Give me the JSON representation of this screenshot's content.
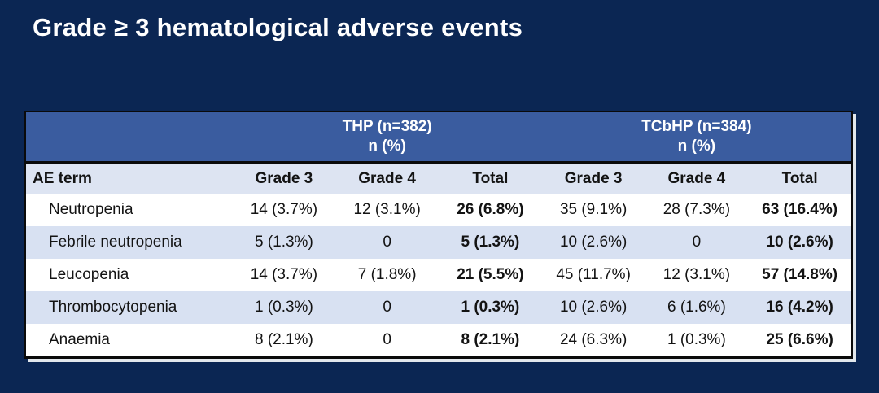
{
  "title": "Grade ≥ 3 hematological adverse events",
  "table": {
    "group_headers": [
      {
        "label": "THP (n=382)",
        "sub": "n (%)"
      },
      {
        "label": "TCbHP (n=384)",
        "sub": "n (%)"
      }
    ],
    "columns": [
      "AE term",
      "Grade 3",
      "Grade 4",
      "Total",
      "Grade 3",
      "Grade 4",
      "Total"
    ],
    "rows": [
      {
        "ae_term": "Neutropenia",
        "values": [
          "14 (3.7%)",
          "12 (3.1%)",
          "26 (6.8%)",
          "35 (9.1%)",
          "28 (7.3%)",
          "63 (16.4%)"
        ]
      },
      {
        "ae_term": "Febrile neutropenia",
        "values": [
          "5 (1.3%)",
          "0",
          "5 (1.3%)",
          "10 (2.6%)",
          "0",
          "10 (2.6%)"
        ]
      },
      {
        "ae_term": "Leucopenia",
        "values": [
          "14 (3.7%)",
          "7 (1.8%)",
          "21 (5.5%)",
          "45 (11.7%)",
          "12 (3.1%)",
          "57 (14.8%)"
        ]
      },
      {
        "ae_term": "Thrombocytopenia",
        "values": [
          "1 (0.3%)",
          "0",
          "1 (0.3%)",
          "10 (2.6%)",
          "6 (1.6%)",
          "16 (4.2%)"
        ]
      },
      {
        "ae_term": "Anaemia",
        "values": [
          "8 (2.1%)",
          "0",
          "8 (2.1%)",
          "24 (6.3%)",
          "1 (0.3%)",
          "25 (6.6%)"
        ]
      }
    ]
  },
  "colors": {
    "slide_background": "#0B2653",
    "group_header_blue": "#3A5C9F",
    "column_header_row": "#DDE4F2",
    "stripe_row": "#D8E1F2",
    "white_row": "#FFFFFF",
    "border_black": "#0A0A0A",
    "title_text": "#FFFFFF",
    "body_text": "#131313"
  }
}
